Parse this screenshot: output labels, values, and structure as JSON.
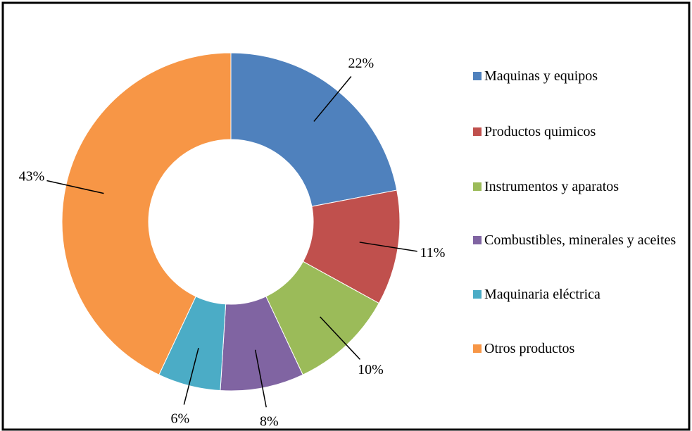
{
  "chart_data": {
    "type": "donut",
    "categories": [
      "Maquinas y equipos",
      "Productos quimicos",
      "Instrumentos y aparatos",
      "Combustibles, minerales y aceites",
      "Maquinaria eléctrica",
      "Otros productos"
    ],
    "values": [
      22,
      11,
      10,
      8,
      6,
      43
    ],
    "value_labels": [
      "22%",
      "11%",
      "10%",
      "8%",
      "6%",
      "43%"
    ],
    "colors": [
      "#4f81bd",
      "#c0504d",
      "#9bbb59",
      "#8064a2",
      "#4bacc6",
      "#f79646"
    ],
    "legend": "right"
  }
}
